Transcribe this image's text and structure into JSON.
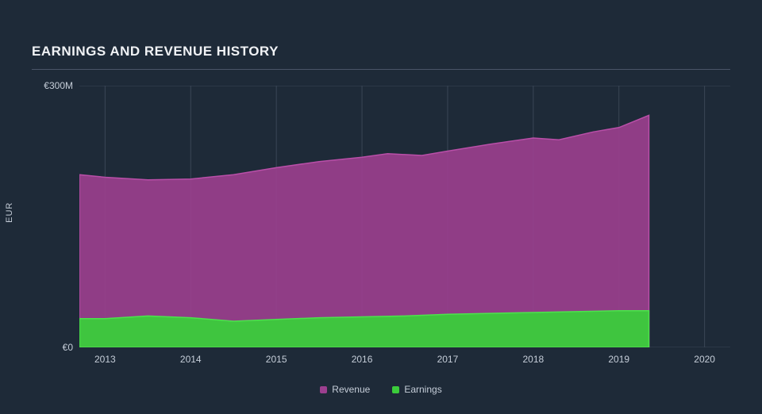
{
  "chart": {
    "type": "area",
    "title": "EARNINGS AND REVENUE HISTORY",
    "background_color": "#1e2a38",
    "grid_color": "#3a4656",
    "text_color": "#c5cdd8",
    "title_color": "#f0f2f5",
    "title_fontsize": 17,
    "label_fontsize": 12,
    "y_axis": {
      "label": "EUR",
      "ticks": [
        {
          "value": 0,
          "label": "€0"
        },
        {
          "value": 300,
          "label": "€300M"
        }
      ],
      "min": 0,
      "max": 300
    },
    "x_axis": {
      "min": 2012.7,
      "max": 2020.3,
      "ticks": [
        2013,
        2014,
        2015,
        2016,
        2017,
        2018,
        2019,
        2020
      ],
      "data_end": 2019.35
    },
    "series": [
      {
        "name": "Revenue",
        "color": "#9c3f8f",
        "stroke_color": "#b94fa8",
        "fill_opacity": 0.9,
        "points": [
          {
            "x": 2012.7,
            "y": 198
          },
          {
            "x": 2013.0,
            "y": 195
          },
          {
            "x": 2013.5,
            "y": 192
          },
          {
            "x": 2014.0,
            "y": 193
          },
          {
            "x": 2014.5,
            "y": 198
          },
          {
            "x": 2015.0,
            "y": 206
          },
          {
            "x": 2015.5,
            "y": 213
          },
          {
            "x": 2016.0,
            "y": 218
          },
          {
            "x": 2016.3,
            "y": 222
          },
          {
            "x": 2016.7,
            "y": 220
          },
          {
            "x": 2017.0,
            "y": 225
          },
          {
            "x": 2017.5,
            "y": 233
          },
          {
            "x": 2018.0,
            "y": 240
          },
          {
            "x": 2018.3,
            "y": 238
          },
          {
            "x": 2018.7,
            "y": 247
          },
          {
            "x": 2019.0,
            "y": 252
          },
          {
            "x": 2019.35,
            "y": 266
          }
        ]
      },
      {
        "name": "Earnings",
        "color": "#3bcc3b",
        "stroke_color": "#4de24d",
        "fill_opacity": 0.95,
        "points": [
          {
            "x": 2012.7,
            "y": 33
          },
          {
            "x": 2013.0,
            "y": 33
          },
          {
            "x": 2013.5,
            "y": 36
          },
          {
            "x": 2014.0,
            "y": 34
          },
          {
            "x": 2014.5,
            "y": 30
          },
          {
            "x": 2015.0,
            "y": 32
          },
          {
            "x": 2015.5,
            "y": 34
          },
          {
            "x": 2016.0,
            "y": 35
          },
          {
            "x": 2016.5,
            "y": 36
          },
          {
            "x": 2017.0,
            "y": 38
          },
          {
            "x": 2017.5,
            "y": 39
          },
          {
            "x": 2018.0,
            "y": 40
          },
          {
            "x": 2018.5,
            "y": 41
          },
          {
            "x": 2019.0,
            "y": 42
          },
          {
            "x": 2019.35,
            "y": 42
          }
        ]
      }
    ],
    "legend": {
      "items": [
        {
          "label": "Revenue",
          "color": "#9c3f8f"
        },
        {
          "label": "Earnings",
          "color": "#3bcc3b"
        }
      ]
    }
  }
}
